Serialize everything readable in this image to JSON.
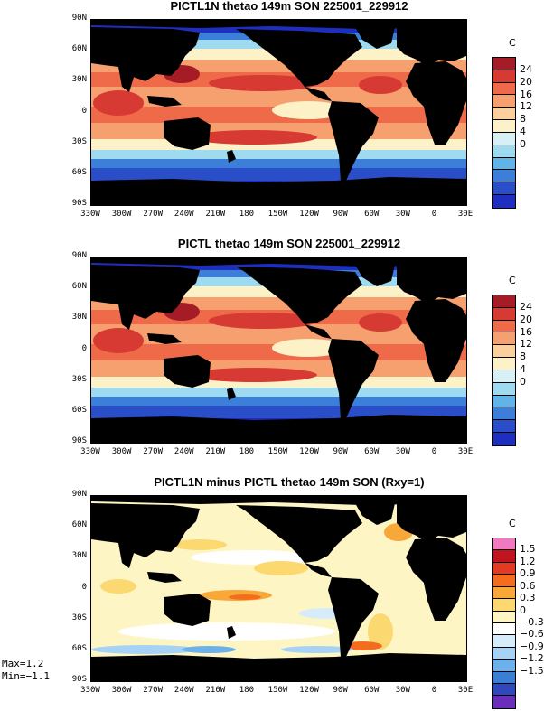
{
  "chart_data": [
    {
      "type": "heatmap",
      "title": "PICTL1N thetao 149m SON 225001_229912",
      "colorbar_unit": "C",
      "colorbar_labels": [
        "24",
        "20",
        "16",
        "12",
        "8",
        "4",
        "0"
      ],
      "colorbar_colors": [
        "#a51b26",
        "#d73a32",
        "#ee6a49",
        "#f7a06f",
        "#fcd09c",
        "#fdf1c7",
        "#d6f0f5",
        "#9edaf0",
        "#60b4e8",
        "#3b7fd8",
        "#2a4ec8",
        "#1e2fc0"
      ],
      "ylabels": [
        "90N",
        "60N",
        "30N",
        "0",
        "30S",
        "60S",
        "90S"
      ],
      "xlabels": [
        "330W",
        "300W",
        "270W",
        "240W",
        "210W",
        "180",
        "150W",
        "120W",
        "90W",
        "60W",
        "30W",
        "0",
        "30E"
      ],
      "grid": false
    },
    {
      "type": "heatmap",
      "title": "PICTL thetao 149m SON 225001_229912",
      "colorbar_unit": "C",
      "colorbar_labels": [
        "24",
        "20",
        "16",
        "12",
        "8",
        "4",
        "0"
      ],
      "colorbar_colors": [
        "#a51b26",
        "#d73a32",
        "#ee6a49",
        "#f7a06f",
        "#fcd09c",
        "#fdf1c7",
        "#d6f0f5",
        "#9edaf0",
        "#60b4e8",
        "#3b7fd8",
        "#2a4ec8",
        "#1e2fc0"
      ],
      "ylabels": [
        "90N",
        "60N",
        "30N",
        "0",
        "30S",
        "60S",
        "90S"
      ],
      "xlabels": [
        "330W",
        "300W",
        "270W",
        "240W",
        "210W",
        "180",
        "150W",
        "120W",
        "90W",
        "60W",
        "30W",
        "0",
        "30E"
      ],
      "grid": false
    },
    {
      "type": "heatmap",
      "title": "PICTL1N minus PICTL thetao 149m SON (Rxy=1)",
      "colorbar_unit": "C",
      "colorbar_labels": [
        "1.5",
        "1.2",
        "0.9",
        "0.6",
        "0.3",
        "0",
        "−0.3",
        "−0.6",
        "−0.9",
        "−1.2",
        "−1.5"
      ],
      "colorbar_colors": [
        "#f07ac0",
        "#c0151e",
        "#e33a22",
        "#f46d1f",
        "#f8a838",
        "#fcd870",
        "#fef5c4",
        "#ffffff",
        "#d7ecfb",
        "#a6d3f5",
        "#6cb1ec",
        "#3a7fd6",
        "#2f49bc",
        "#6a2fb8"
      ],
      "ylabels": [
        "90N",
        "60N",
        "30N",
        "0",
        "30S",
        "60S",
        "90S"
      ],
      "xlabels": [
        "330W",
        "300W",
        "270W",
        "240W",
        "210W",
        "180",
        "150W",
        "120W",
        "90W",
        "60W",
        "30W",
        "0",
        "30E"
      ],
      "grid": false,
      "max_label": "Max=1.2",
      "min_label": "Min=−1.1",
      "max": 1.2,
      "min": -1.1
    }
  ],
  "colors": {
    "land": "#000000",
    "background": "#ffffff"
  }
}
